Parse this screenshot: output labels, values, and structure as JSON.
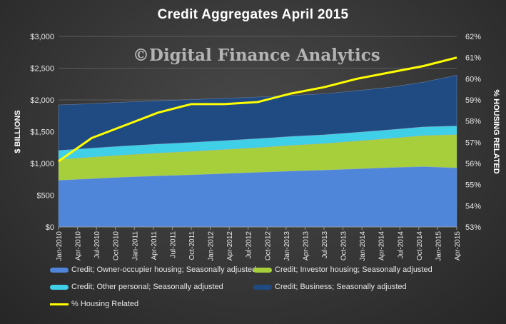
{
  "chart_data": {
    "type": "area",
    "title": "Credit Aggregates April 2015",
    "watermark": "©Digital Finance Analytics",
    "ylabel": "$ BILLIONS",
    "y2label": "% HOUSING RELATED",
    "ylim": [
      0,
      3000
    ],
    "y2lim": [
      53,
      62
    ],
    "yticks": [
      "$0",
      "$500",
      "$1,000",
      "$1,500",
      "$2,000",
      "$2,500",
      "$3,000"
    ],
    "y2ticks": [
      "53%",
      "54%",
      "55%",
      "56%",
      "57%",
      "58%",
      "59%",
      "60%",
      "61%",
      "62%"
    ],
    "x_tick_labels": [
      "Jan-2010",
      "Apr-2010",
      "Jul-2010",
      "Oct-2010",
      "Jan-2011",
      "Apr-2011",
      "Jul-2011",
      "Oct-2011",
      "Jan-2012",
      "Apr-2012",
      "Jul-2012",
      "Oct-2012",
      "Jan-2013",
      "Apr-2013",
      "Jul-2013",
      "Oct-2013",
      "Jan-2014",
      "Apr-2014",
      "Jul-2014",
      "Oct-2014",
      "Jan-2015",
      "Apr-2015"
    ],
    "stack_order": "bottom-to-top",
    "grid": true,
    "legend_position": "bottom",
    "series": [
      {
        "name": "Credit; Owner-occupier housing; Seasonally adjusted",
        "kind": "area",
        "color": "#4f86d9",
        "values": [
          735,
          760,
          785,
          805,
          820,
          840,
          860,
          880,
          895,
          915,
          935,
          950,
          930
        ]
      },
      {
        "name": "Credit; Investor housing; Seasonally adjusted",
        "kind": "area",
        "color": "#a6cf3b",
        "values": [
          330,
          340,
          350,
          360,
          370,
          380,
          390,
          405,
          420,
          440,
          460,
          490,
          525
        ]
      },
      {
        "name": "Credit; Other personal; Seasonally adjusted",
        "kind": "area",
        "color": "#3fcfe6",
        "values": [
          140,
          140,
          140,
          140,
          140,
          140,
          140,
          140,
          135,
          135,
          135,
          135,
          135
        ]
      },
      {
        "name": "Credit; Business; Seasonally adjusted",
        "kind": "area",
        "color": "#1f4a82",
        "values": [
          715,
          700,
          690,
          680,
          675,
          665,
          655,
          645,
          645,
          655,
          670,
          705,
          800
        ]
      },
      {
        "name": "% Housing Related",
        "kind": "line",
        "axis": "right",
        "color": "#ffff00",
        "values": [
          56.1,
          57.2,
          57.8,
          58.4,
          58.8,
          58.8,
          58.9,
          59.3,
          59.6,
          60.0,
          60.3,
          60.6,
          61.0
        ]
      }
    ]
  }
}
